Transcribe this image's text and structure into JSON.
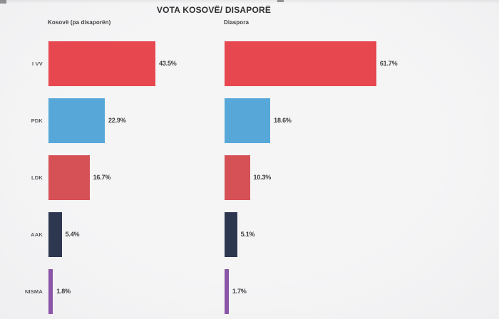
{
  "title": "VOTA KOSOVË/ DISAPORË",
  "panels": {
    "left": {
      "header": "Kosovë (pa disaporën)"
    },
    "right": {
      "header": "Diaspora"
    }
  },
  "chart_data": {
    "type": "bar",
    "orientation": "horizontal",
    "categories": [
      "I VV",
      "PDK",
      "LDK",
      "AAK",
      "NISMA"
    ],
    "series": [
      {
        "name": "Kosovë (pa disaporën)",
        "values": [
          43.5,
          22.9,
          16.7,
          5.4,
          1.8
        ]
      },
      {
        "name": "Diaspora",
        "values": [
          61.7,
          18.6,
          10.3,
          5.1,
          1.7
        ]
      }
    ],
    "value_labels": {
      "left": [
        "43.5%",
        "22.9%",
        "16.7%",
        "5.4%",
        "1.8%"
      ],
      "right": [
        "61.7%",
        "18.6%",
        "10.3%",
        "5.1%",
        "1.7%"
      ]
    },
    "value_suffix": "%",
    "bar_colors": [
      "#e7474e",
      "#57a8d9",
      "#d65156",
      "#2d3850",
      "#8a55a7"
    ],
    "xlim": [
      0,
      100
    ],
    "grid": false,
    "legend": "none",
    "background": "#f3f3f4"
  }
}
